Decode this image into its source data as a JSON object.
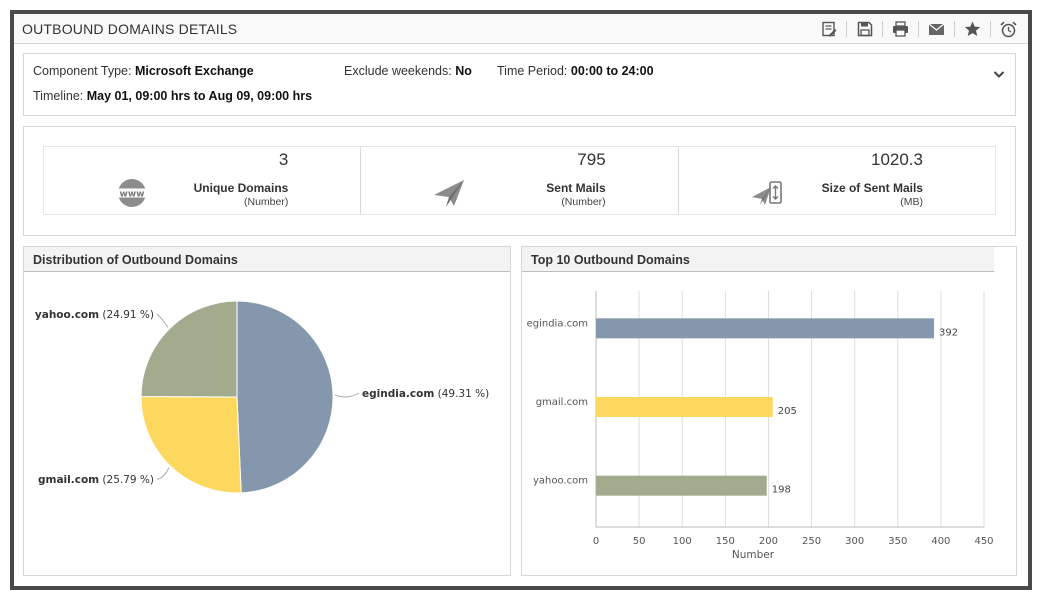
{
  "header": {
    "title": "OUTBOUND DOMAINS DETAILS",
    "toolbar": [
      "edit-report-icon",
      "save-icon",
      "print-icon",
      "mail-icon",
      "favorite-icon",
      "alarm-icon"
    ]
  },
  "info": {
    "component_type_label": "Component Type:",
    "component_type_value": "Microsoft Exchange",
    "exclude_weekends_label": "Exclude weekends:",
    "exclude_weekends_value": "No",
    "time_period_label": "Time Period:",
    "time_period_value": "00:00 to 24:00",
    "timeline_label": "Timeline:",
    "timeline_value": "May 01, 09:00 hrs to Aug 09, 09:00 hrs"
  },
  "kpis": [
    {
      "value": "3",
      "label": "Unique Domains",
      "unit": "(Number)",
      "icon": "www-globe-icon"
    },
    {
      "value": "795",
      "label": "Sent Mails",
      "unit": "(Number)",
      "icon": "paper-plane-icon"
    },
    {
      "value": "1020.3",
      "label": "Size of Sent Mails",
      "unit": "(MB)",
      "icon": "mail-size-icon"
    }
  ],
  "colors": {
    "egindia": "#8497ad",
    "gmail": "#fdd85e",
    "yahoo": "#a3ab8f"
  },
  "chart_data": [
    {
      "type": "pie",
      "title": "Distribution of Outbound Domains",
      "slices": [
        {
          "name": "egindia.com",
          "value": 49.31,
          "label": "egindia.com (49.31 %)",
          "color": "#8497ad"
        },
        {
          "name": "gmail.com",
          "value": 25.79,
          "label": "gmail.com (25.79 %)",
          "color": "#fdd85e"
        },
        {
          "name": "yahoo.com",
          "value": 24.91,
          "label": "yahoo.com (24.91 %)",
          "color": "#a3ab8f"
        }
      ]
    },
    {
      "type": "bar",
      "orientation": "horizontal",
      "title": "Top 10 Outbound Domains",
      "categories": [
        "egindia.com",
        "gmail.com",
        "yahoo.com"
      ],
      "values": [
        392,
        205,
        198
      ],
      "colors": [
        "#8497ad",
        "#fdd85e",
        "#a3ab8f"
      ],
      "xlabel": "Number",
      "ylabel": "",
      "xlim": [
        0,
        450
      ],
      "xticks": [
        0,
        50,
        100,
        150,
        200,
        250,
        300,
        350,
        400,
        450
      ],
      "grid": true
    }
  ]
}
